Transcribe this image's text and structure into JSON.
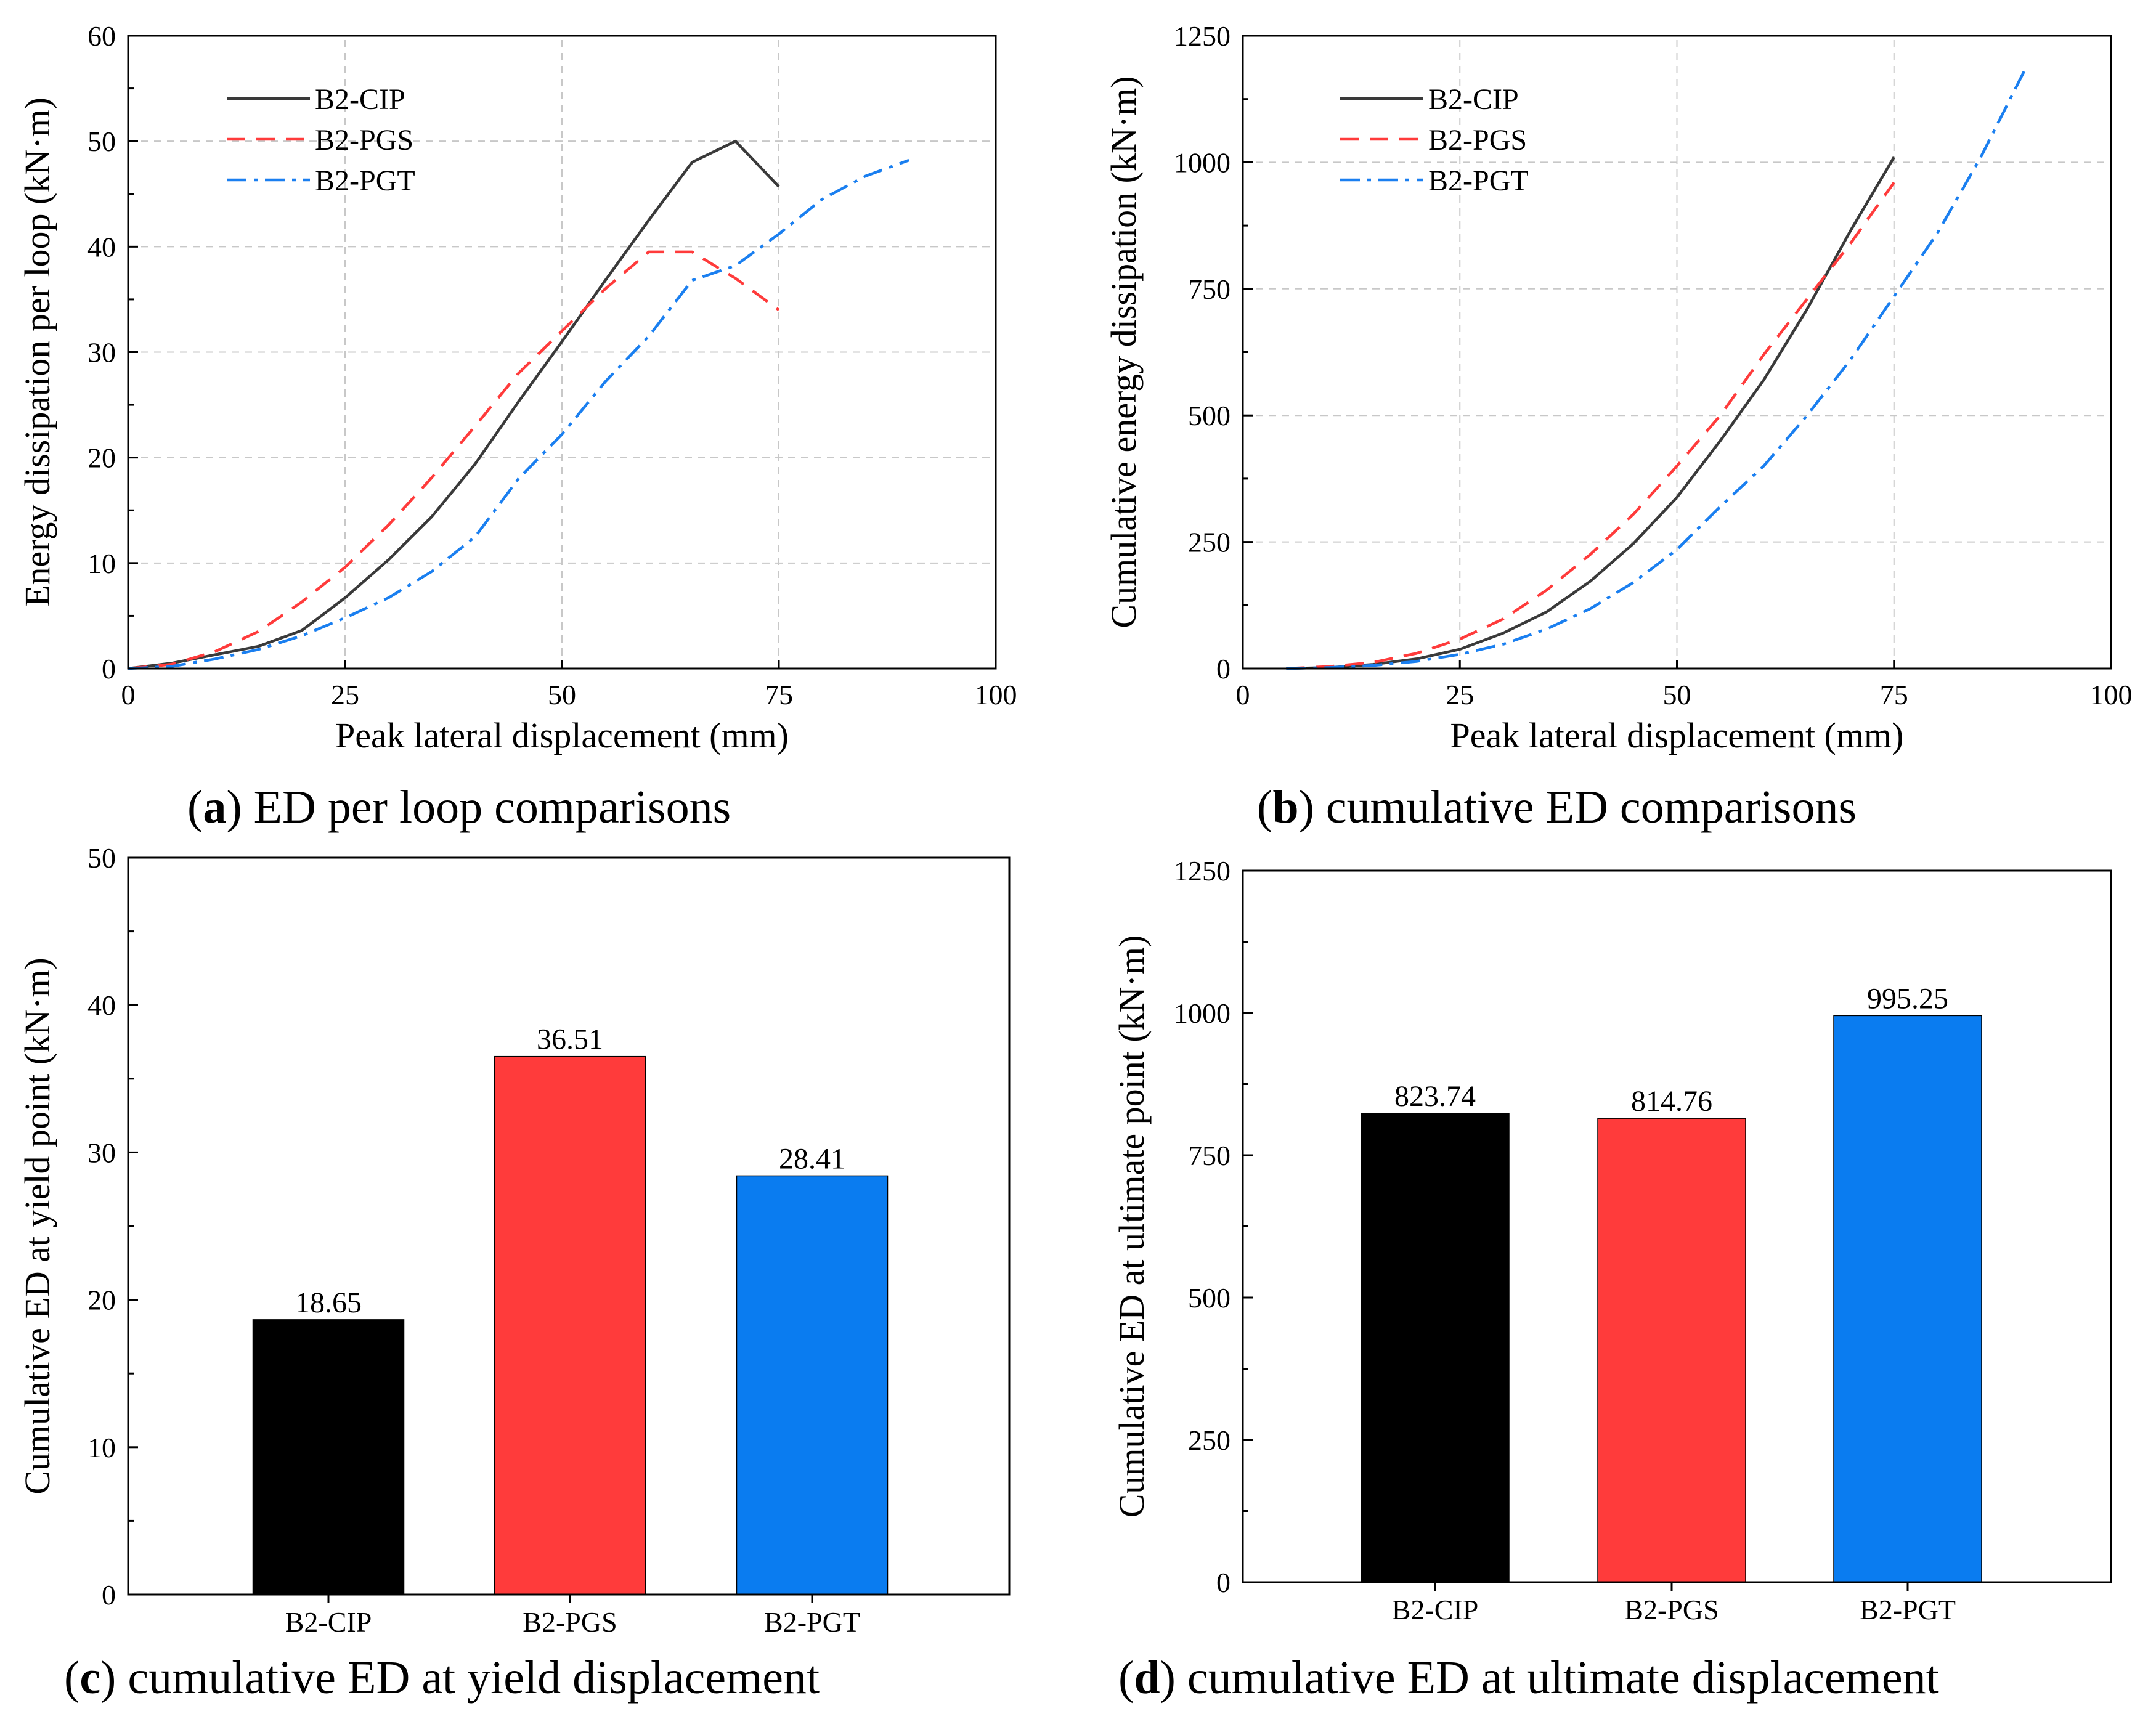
{
  "colors": {
    "B2-CIP_line": "#3a3a3a",
    "B2-PGS_line": "#ff3b3b",
    "B2-PGT_line": "#1a7ff0",
    "bar_black": "#000000",
    "bar_red": "#ff3b3b",
    "bar_blue": "#0a7cf0"
  },
  "captions": {
    "a": {
      "letter": "a",
      "open": "(",
      "close": ")",
      "text": " ED per loop comparisons"
    },
    "b": {
      "letter": "b",
      "open": "(",
      "close": ")",
      "text": " cumulative ED comparisons"
    },
    "c": {
      "letter": "c",
      "open": "(",
      "close": ")",
      "text": " cumulative ED at yield displacement"
    },
    "d": {
      "letter": "d",
      "open": "(",
      "close": ")",
      "text": " cumulative ED at ultimate displacement"
    }
  },
  "chart_data": [
    {
      "id": "a",
      "type": "line",
      "xlabel": "Peak lateral displacement (mm)",
      "ylabel": "Energy dissipation per loop (kN·m)",
      "xlim": [
        0,
        100
      ],
      "ylim": [
        0,
        60
      ],
      "xticks": [
        "0",
        "25",
        "50",
        "75",
        "100"
      ],
      "yticks": [
        "0",
        "10",
        "20",
        "30",
        "40",
        "50",
        "60"
      ],
      "grid": true,
      "legend_position": "top-left",
      "series": [
        {
          "name": "B2-CIP",
          "style": "solid",
          "x": [
            0,
            5,
            10,
            15,
            20,
            25,
            30,
            35,
            40,
            45,
            50,
            55,
            60,
            65,
            70,
            75
          ],
          "y": [
            0,
            0.5,
            1.3,
            2.1,
            3.6,
            6.7,
            10.3,
            14.4,
            19.4,
            25.3,
            31,
            36.8,
            42.5,
            48,
            50,
            45.7
          ]
        },
        {
          "name": "B2-PGS",
          "style": "dash",
          "x": [
            0,
            5,
            10,
            15,
            20,
            25,
            30,
            35,
            40,
            45,
            50,
            55,
            60,
            65,
            70,
            75
          ],
          "y": [
            0,
            0.4,
            1.6,
            3.5,
            6.3,
            9.6,
            13.6,
            18.1,
            23,
            28,
            32,
            36,
            39.5,
            39.5,
            37,
            34
          ]
        },
        {
          "name": "B2-PGT",
          "style": "dashdot",
          "x": [
            0,
            5,
            10,
            15,
            20,
            25,
            30,
            35,
            40,
            45,
            50,
            55,
            60,
            65,
            70,
            75,
            80,
            85,
            90
          ],
          "y": [
            0,
            0.2,
            0.9,
            1.8,
            3.1,
            4.8,
            6.7,
            9.2,
            12.5,
            18,
            22.2,
            27.2,
            31.5,
            36.8,
            38.2,
            41.2,
            44.5,
            46.7,
            48.2
          ]
        }
      ]
    },
    {
      "id": "b",
      "type": "line",
      "xlabel": "Peak lateral displacement (mm)",
      "ylabel": "Cumulative energy dissipation (kN·m)",
      "xlim": [
        0,
        100
      ],
      "ylim": [
        0,
        1250
      ],
      "xticks": [
        "0",
        "25",
        "50",
        "75",
        "100"
      ],
      "yticks": [
        "0",
        "250",
        "500",
        "750",
        "1000",
        "1250"
      ],
      "grid": true,
      "legend_position": "top-left",
      "series": [
        {
          "name": "B2-CIP",
          "style": "solid",
          "x": [
            5,
            10,
            15,
            20,
            25,
            30,
            35,
            40,
            45,
            50,
            55,
            60,
            65,
            70,
            75
          ],
          "y": [
            0,
            2,
            8,
            19,
            38,
            70,
            112,
            172,
            247,
            338,
            450,
            570,
            710,
            865,
            1010
          ]
        },
        {
          "name": "B2-PGS",
          "style": "dash",
          "x": [
            5,
            10,
            15,
            20,
            25,
            30,
            35,
            40,
            45,
            50,
            55,
            60,
            65,
            70,
            75
          ],
          "y": [
            0,
            4,
            12,
            30,
            58,
            98,
            155,
            225,
            305,
            400,
            500,
            620,
            730,
            840,
            960
          ]
        },
        {
          "name": "B2-PGT",
          "style": "dashdot",
          "x": [
            5,
            10,
            15,
            20,
            25,
            30,
            35,
            40,
            45,
            50,
            55,
            60,
            65,
            70,
            75,
            80,
            85,
            90
          ],
          "y": [
            0,
            2,
            6,
            14,
            28,
            48,
            78,
            118,
            170,
            235,
            320,
            400,
            500,
            610,
            735,
            860,
            1010,
            1180
          ]
        }
      ]
    },
    {
      "id": "c",
      "type": "bar",
      "xlabel": "",
      "ylabel": "Cumulative ED at yield point (kN·m)",
      "ylim": [
        0,
        50
      ],
      "yticks": [
        "0",
        "10",
        "20",
        "30",
        "40",
        "50"
      ],
      "grid": false,
      "categories": [
        "B2-CIP",
        "B2-PGS",
        "B2-PGT"
      ],
      "values": [
        18.65,
        36.51,
        28.41
      ],
      "value_labels": [
        "18.65",
        "36.51",
        "28.41"
      ]
    },
    {
      "id": "d",
      "type": "bar",
      "xlabel": "",
      "ylabel": "Cumulative ED at ultimate point (kN·m)",
      "ylim": [
        0,
        1250
      ],
      "yticks": [
        "0",
        "250",
        "500",
        "750",
        "1000",
        "1250"
      ],
      "grid": false,
      "categories": [
        "B2-CIP",
        "B2-PGS",
        "B2-PGT"
      ],
      "values": [
        823.74,
        814.76,
        995.25
      ],
      "value_labels": [
        "823.74",
        "814.76",
        "995.25"
      ]
    }
  ]
}
